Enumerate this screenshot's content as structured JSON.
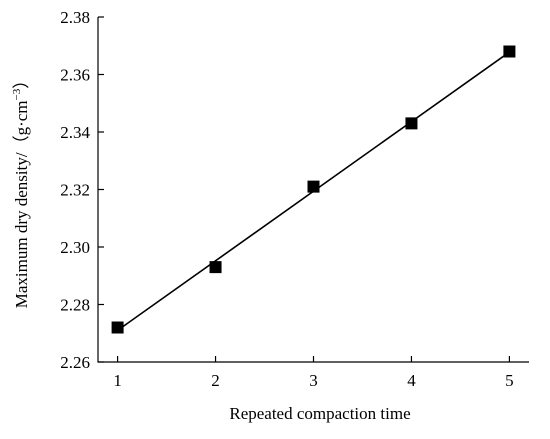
{
  "chart_data": {
    "type": "scatter",
    "title": "",
    "xlabel": "Repeated compaction time",
    "ylabel": "Maximum dry density/（g·cm",
    "ylabel_exponent": "−3",
    "ylabel_close": "）",
    "x_ticks": [
      "1",
      "2",
      "3",
      "4",
      "5"
    ],
    "y_ticks": [
      "2.26",
      "2.28",
      "2.30",
      "2.32",
      "2.34",
      "2.36",
      "2.38"
    ],
    "xlim": [
      0.8,
      5.2
    ],
    "ylim": [
      2.26,
      2.38
    ],
    "grid": false,
    "series": [
      {
        "x": [
          1,
          2,
          3,
          4,
          5
        ],
        "values": [
          2.272,
          2.293,
          2.321,
          2.343,
          2.368
        ],
        "marker": "square",
        "fit_line": true
      }
    ],
    "colors": {
      "marker": "#000000",
      "line": "#000000",
      "axis": "#000000"
    }
  }
}
